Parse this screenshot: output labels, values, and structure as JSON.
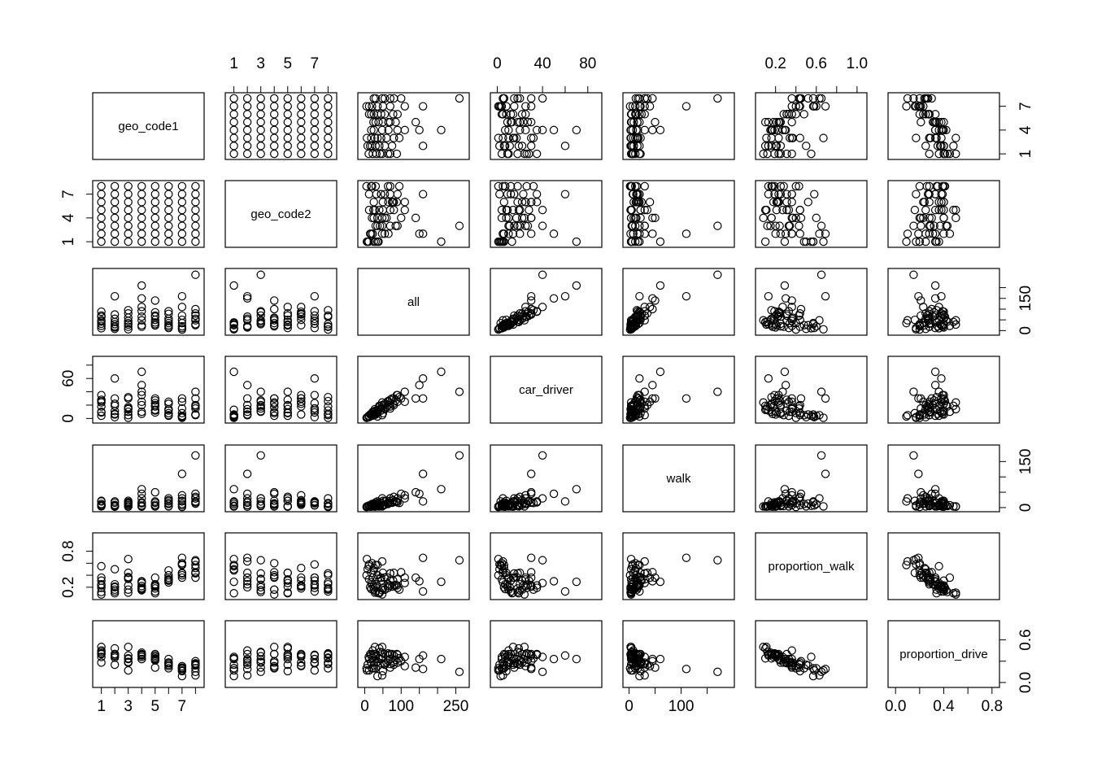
{
  "chart_data": {
    "type": "scatter",
    "title": "",
    "variables": [
      "geo_code1",
      "geo_code2",
      "all",
      "car_driver",
      "walk",
      "proportion_walk",
      "proportion_drive"
    ],
    "axes": {
      "geo_code1": {
        "range": [
          0.6,
          8.4
        ],
        "ticks": [
          {
            "v": 1,
            "label": "1"
          },
          {
            "v": 2,
            "label": ""
          },
          {
            "v": 3,
            "label": "3"
          },
          {
            "v": 4,
            "label": ""
          },
          {
            "v": 5,
            "label": "5"
          },
          {
            "v": 6,
            "label": ""
          },
          {
            "v": 7,
            "label": "7"
          },
          {
            "v": 8,
            "label": ""
          }
        ],
        "vticks": [
          {
            "v": 1,
            "label": "1"
          },
          {
            "v": 4,
            "label": "4"
          },
          {
            "v": 7,
            "label": "7"
          }
        ]
      },
      "geo_code2": {
        "range": [
          0.6,
          8.4
        ],
        "ticks": [
          {
            "v": 1,
            "label": "1"
          },
          {
            "v": 2,
            "label": ""
          },
          {
            "v": 3,
            "label": "3"
          },
          {
            "v": 4,
            "label": ""
          },
          {
            "v": 5,
            "label": "5"
          },
          {
            "v": 6,
            "label": ""
          },
          {
            "v": 7,
            "label": "7"
          },
          {
            "v": 8,
            "label": ""
          }
        ],
        "vticks": [
          {
            "v": 1,
            "label": "1"
          },
          {
            "v": 4,
            "label": "4"
          },
          {
            "v": 7,
            "label": "7"
          }
        ]
      },
      "all": {
        "range": [
          -10,
          278
        ],
        "ticks": [
          {
            "v": 0,
            "label": "0"
          },
          {
            "v": 50,
            "label": ""
          },
          {
            "v": 100,
            "label": "100"
          },
          {
            "v": 150,
            "label": ""
          },
          {
            "v": 200,
            "label": ""
          },
          {
            "v": 250,
            "label": "250"
          }
        ],
        "vticks": [
          {
            "v": 0,
            "label": "0"
          },
          {
            "v": 50,
            "label": ""
          },
          {
            "v": 100,
            "label": ""
          },
          {
            "v": 150,
            "label": "150"
          },
          {
            "v": 200,
            "label": ""
          }
        ]
      },
      "car_driver": {
        "range": [
          -3.2,
          89.5
        ],
        "ticks": [
          {
            "v": 0,
            "label": "0"
          },
          {
            "v": 20,
            "label": ""
          },
          {
            "v": 40,
            "label": "40"
          },
          {
            "v": 60,
            "label": ""
          },
          {
            "v": 80,
            "label": "80"
          }
        ],
        "vticks": [
          {
            "v": 0,
            "label": "0"
          },
          {
            "v": 20,
            "label": ""
          },
          {
            "v": 40,
            "label": ""
          },
          {
            "v": 60,
            "label": "60"
          },
          {
            "v": 80,
            "label": ""
          }
        ]
      },
      "walk": {
        "range": [
          -5.5,
          196
        ],
        "ticks": [
          {
            "v": 0,
            "label": "0"
          },
          {
            "v": 50,
            "label": ""
          },
          {
            "v": 100,
            "label": "100"
          },
          {
            "v": 150,
            "label": ""
          }
        ],
        "vticks": [
          {
            "v": 0,
            "label": "0"
          },
          {
            "v": 50,
            "label": ""
          },
          {
            "v": 100,
            "label": ""
          },
          {
            "v": 150,
            "label": "150"
          }
        ]
      },
      "proportion_walk": {
        "range": [
          0.035,
          1.065
        ],
        "ticks": [
          {
            "v": 0.2,
            "label": "0.2"
          },
          {
            "v": 0.4,
            "label": ""
          },
          {
            "v": 0.6,
            "label": "0.6"
          },
          {
            "v": 0.8,
            "label": ""
          },
          {
            "v": 1.0,
            "label": "1.0"
          }
        ],
        "vticks": [
          {
            "v": 0.2,
            "label": "0.2"
          },
          {
            "v": 0.4,
            "label": ""
          },
          {
            "v": 0.6,
            "label": ""
          },
          {
            "v": 0.8,
            "label": "0.8"
          }
        ]
      },
      "proportion_drive": {
        "range": [
          -0.035,
          0.835
        ],
        "ticks": [
          {
            "v": 0.0,
            "label": "0.0"
          },
          {
            "v": 0.2,
            "label": ""
          },
          {
            "v": 0.4,
            "label": "0.4"
          },
          {
            "v": 0.6,
            "label": ""
          },
          {
            "v": 0.8,
            "label": "0.8"
          }
        ],
        "vticks": [
          {
            "v": 0.0,
            "label": "0.0"
          },
          {
            "v": 0.3,
            "label": ""
          },
          {
            "v": 0.6,
            "label": "0.6"
          }
        ]
      }
    },
    "observations": [
      [
        1,
        1,
        11,
        4,
        6,
        0.55,
        0.36
      ],
      [
        1,
        2,
        22,
        10,
        8,
        0.36,
        0.45
      ],
      [
        1,
        3,
        42,
        18,
        5,
        0.12,
        0.43
      ],
      [
        1,
        4,
        48,
        24,
        4,
        0.08,
        0.5
      ],
      [
        1,
        5,
        70,
        28,
        22,
        0.31,
        0.4
      ],
      [
        1,
        6,
        88,
        35,
        20,
        0.23,
        0.4
      ],
      [
        1,
        7,
        32,
        9,
        8,
        0.25,
        0.28
      ],
      [
        1,
        8,
        64,
        26,
        12,
        0.19,
        0.41
      ],
      [
        2,
        1,
        8,
        2,
        4,
        0.5,
        0.25
      ],
      [
        2,
        2,
        15,
        6,
        3,
        0.2,
        0.4
      ],
      [
        2,
        3,
        30,
        11,
        6,
        0.2,
        0.37
      ],
      [
        2,
        4,
        55,
        22,
        9,
        0.16,
        0.4
      ],
      [
        2,
        5,
        40,
        19,
        4,
        0.1,
        0.48
      ],
      [
        2,
        6,
        75,
        30,
        16,
        0.21,
        0.4
      ],
      [
        2,
        7,
        160,
        60,
        20,
        0.13,
        0.38
      ],
      [
        2,
        8,
        20,
        7,
        5,
        0.25,
        0.35
      ],
      [
        3,
        1,
        6,
        1,
        4,
        0.67,
        0.17
      ],
      [
        3,
        2,
        18,
        5,
        8,
        0.44,
        0.28
      ],
      [
        3,
        3,
        35,
        10,
        12,
        0.34,
        0.29
      ],
      [
        3,
        4,
        60,
        17,
        22,
        0.37,
        0.28
      ],
      [
        3,
        5,
        28,
        14,
        3,
        0.11,
        0.5
      ],
      [
        3,
        6,
        80,
        30,
        18,
        0.23,
        0.38
      ],
      [
        3,
        7,
        45,
        15,
        16,
        0.36,
        0.33
      ],
      [
        3,
        8,
        95,
        32,
        15,
        0.16,
        0.34
      ],
      [
        4,
        1,
        210,
        70,
        60,
        0.29,
        0.33
      ],
      [
        4,
        2,
        150,
        50,
        45,
        0.3,
        0.33
      ],
      [
        4,
        3,
        48,
        20,
        7,
        0.15,
        0.42
      ],
      [
        4,
        4,
        25,
        10,
        4,
        0.16,
        0.4
      ],
      [
        4,
        5,
        110,
        40,
        30,
        0.27,
        0.36
      ],
      [
        4,
        6,
        65,
        25,
        14,
        0.22,
        0.38
      ],
      [
        4,
        7,
        90,
        35,
        17,
        0.19,
        0.39
      ],
      [
        4,
        8,
        18,
        7,
        3,
        0.17,
        0.39
      ],
      [
        5,
        1,
        38,
        13,
        4,
        0.1,
        0.34
      ],
      [
        5,
        2,
        65,
        20,
        16,
        0.25,
        0.31
      ],
      [
        5,
        3,
        85,
        27,
        20,
        0.24,
        0.32
      ],
      [
        5,
        4,
        140,
        30,
        50,
        0.36,
        0.21
      ],
      [
        5,
        5,
        24,
        9,
        5,
        0.21,
        0.38
      ],
      [
        5,
        6,
        50,
        18,
        9,
        0.18,
        0.36
      ],
      [
        5,
        7,
        70,
        23,
        16,
        0.23,
        0.33
      ],
      [
        5,
        8,
        30,
        12,
        4,
        0.13,
        0.4
      ],
      [
        6,
        1,
        25,
        5,
        12,
        0.48,
        0.2
      ],
      [
        6,
        2,
        55,
        14,
        20,
        0.36,
        0.25
      ],
      [
        6,
        3,
        90,
        25,
        30,
        0.33,
        0.28
      ],
      [
        6,
        4,
        35,
        8,
        14,
        0.4,
        0.23
      ],
      [
        6,
        5,
        12,
        4,
        4,
        0.33,
        0.33
      ],
      [
        6,
        6,
        78,
        22,
        24,
        0.31,
        0.28
      ],
      [
        6,
        7,
        45,
        12,
        14,
        0.31,
        0.27
      ],
      [
        6,
        8,
        18,
        5,
        5,
        0.28,
        0.28
      ],
      [
        7,
        1,
        35,
        3,
        20,
        0.57,
        0.09
      ],
      [
        7,
        2,
        160,
        30,
        110,
        0.69,
        0.19
      ],
      [
        7,
        3,
        70,
        15,
        30,
        0.43,
        0.21
      ],
      [
        7,
        4,
        20,
        4,
        12,
        0.6,
        0.2
      ],
      [
        7,
        5,
        50,
        8,
        22,
        0.44,
        0.16
      ],
      [
        7,
        6,
        110,
        25,
        40,
        0.36,
        0.23
      ],
      [
        7,
        7,
        12,
        2,
        7,
        0.58,
        0.17
      ],
      [
        7,
        8,
        5,
        1,
        2,
        0.4,
        0.2
      ],
      [
        8,
        1,
        30,
        6,
        17,
        0.57,
        0.2
      ],
      [
        8,
        2,
        48,
        5,
        30,
        0.63,
        0.1
      ],
      [
        8,
        3,
        260,
        40,
        170,
        0.65,
        0.15
      ],
      [
        8,
        4,
        100,
        30,
        45,
        0.45,
        0.3
      ],
      [
        8,
        5,
        80,
        20,
        35,
        0.44,
        0.25
      ],
      [
        8,
        6,
        25,
        6,
        13,
        0.52,
        0.24
      ],
      [
        8,
        7,
        55,
        15,
        20,
        0.36,
        0.27
      ],
      [
        8,
        8,
        70,
        18,
        30,
        0.43,
        0.26
      ]
    ]
  }
}
